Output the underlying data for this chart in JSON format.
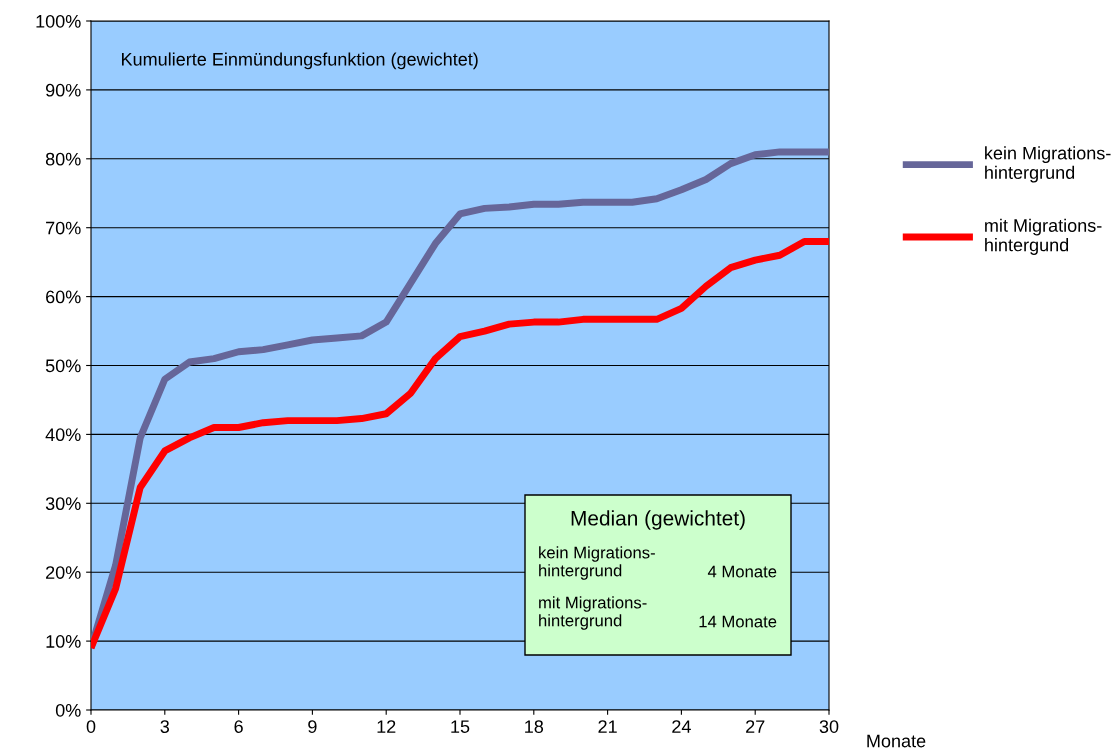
{
  "chart_data": {
    "type": "line",
    "title": "Kumulierte Einmündungsfunktion (gewichtet)",
    "xlabel": "Monate",
    "x": [
      0,
      1,
      2,
      3,
      4,
      5,
      6,
      7,
      8,
      9,
      10,
      11,
      12,
      13,
      14,
      15,
      16,
      17,
      18,
      19,
      20,
      21,
      22,
      23,
      24,
      25,
      26,
      27,
      28,
      29,
      30
    ],
    "series": [
      {
        "name": "kein Migrations-\nhintergrund",
        "color": "#666699",
        "values": [
          9,
          21,
          39.5,
          48,
          50.5,
          51,
          52,
          52.3,
          53,
          53.7,
          54,
          54.3,
          56.3,
          62,
          67.7,
          72,
          72.8,
          73,
          73.4,
          73.4,
          73.7,
          73.7,
          73.7,
          74.2,
          75.5,
          77,
          79.3,
          80.6,
          81,
          81,
          81
        ]
      },
      {
        "name": "mit Migrations-\nhintergund",
        "color": "#ff0000",
        "values": [
          9,
          17.6,
          32.3,
          37.6,
          39.5,
          41,
          41,
          41.7,
          42,
          42,
          42,
          42.3,
          43,
          46,
          51,
          54.2,
          55,
          56,
          56.3,
          56.3,
          56.7,
          56.7,
          56.7,
          56.7,
          58.3,
          61.5,
          64.2,
          65.3,
          66,
          68,
          68
        ]
      }
    ],
    "xlim": [
      0,
      30
    ],
    "xticks": [
      0,
      3,
      6,
      9,
      12,
      15,
      18,
      21,
      24,
      27,
      30
    ],
    "ylim": [
      0,
      100
    ],
    "yticks": [
      {
        "value": 0,
        "label": "0%"
      },
      {
        "value": 10,
        "label": "10%"
      },
      {
        "value": 20,
        "label": "20%"
      },
      {
        "value": 30,
        "label": "30%"
      },
      {
        "value": 40,
        "label": "40%"
      },
      {
        "value": 50,
        "label": "50%"
      },
      {
        "value": 60,
        "label": "60%"
      },
      {
        "value": 70,
        "label": "70%"
      },
      {
        "value": 80,
        "label": "80%"
      },
      {
        "value": 90,
        "label": "90%"
      },
      {
        "value": 100,
        "label": "100%"
      }
    ],
    "grid": "y",
    "legend": "right",
    "marker": "none",
    "line_style": "solid",
    "annotations": [
      "Median (gewichtet)",
      "kein Migrations-\nhintergrund",
      "4 Monate",
      "mit Migrations-\nhintergrund",
      "14 Monate"
    ]
  }
}
